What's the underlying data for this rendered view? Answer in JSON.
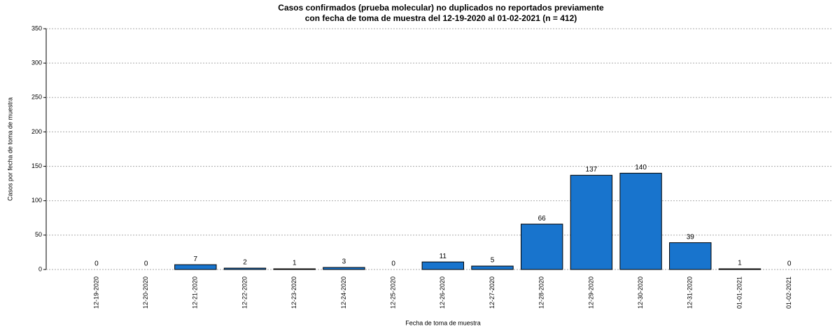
{
  "chart_data": {
    "type": "bar",
    "title_lines": [
      "Casos confirmados (prueba molecular) no duplicados no reportados previamente",
      "con fecha de toma de muestra del 12-19-2020 al 01-02-2021 (n = 412)"
    ],
    "x_label": "Fecha de toma de muestra",
    "y_label": "Casos por fecha de toma de muestra",
    "categories": [
      "12-19-2020",
      "12-20-2020",
      "12-21-2020",
      "12-22-2020",
      "12-23-2020",
      "12-24-2020",
      "12-25-2020",
      "12-26-2020",
      "12-27-2020",
      "12-28-2020",
      "12-29-2020",
      "12-30-2020",
      "12-31-2020",
      "01-01-2021",
      "01-02-2021"
    ],
    "values": [
      0,
      0,
      7,
      2,
      1,
      3,
      0,
      11,
      5,
      66,
      137,
      140,
      39,
      1,
      0
    ],
    "color": "#1874cd",
    "ylim": [
      0,
      350
    ],
    "yticks": [
      0,
      50,
      100,
      150,
      200,
      250,
      300,
      350
    ],
    "grid": true
  }
}
